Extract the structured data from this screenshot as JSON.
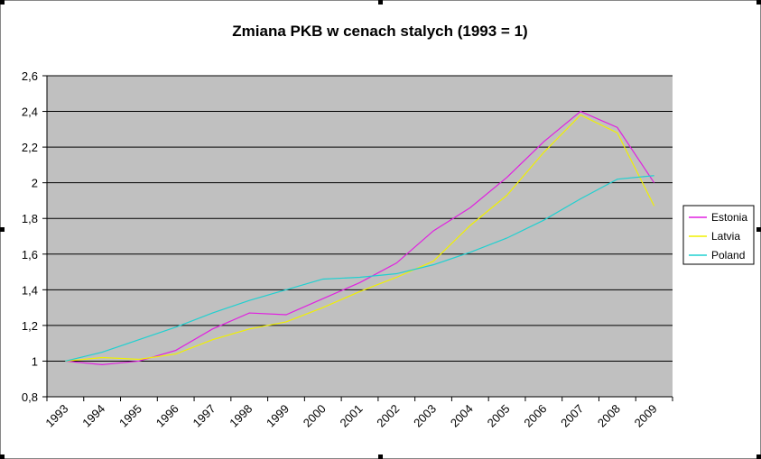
{
  "chart_data": {
    "type": "line",
    "title": "Zmiana PKB w cenach stalych (1993 = 1)",
    "categories": [
      "1993",
      "1994",
      "1995",
      "1996",
      "1997",
      "1998",
      "1999",
      "2000",
      "2001",
      "2002",
      "2003",
      "2004",
      "2005",
      "2006",
      "2007",
      "2008",
      "2009"
    ],
    "series": [
      {
        "name": "Estonia",
        "color": "#e020e0",
        "values": [
          1.0,
          0.98,
          1.0,
          1.06,
          1.18,
          1.27,
          1.26,
          1.35,
          1.44,
          1.55,
          1.73,
          1.86,
          2.03,
          2.23,
          2.4,
          2.31,
          2.0
        ]
      },
      {
        "name": "Latvia",
        "color": "#f0f000",
        "values": [
          1.0,
          1.02,
          1.01,
          1.04,
          1.12,
          1.18,
          1.22,
          1.3,
          1.39,
          1.47,
          1.56,
          1.76,
          1.93,
          2.17,
          2.38,
          2.28,
          1.87
        ]
      },
      {
        "name": "Poland",
        "color": "#20d0d0",
        "values": [
          1.0,
          1.05,
          1.12,
          1.19,
          1.27,
          1.34,
          1.4,
          1.46,
          1.47,
          1.49,
          1.54,
          1.61,
          1.69,
          1.79,
          1.91,
          2.02,
          2.04
        ]
      }
    ],
    "ylim": [
      0.8,
      2.6
    ],
    "yticks": [
      {
        "value": 0.8,
        "label": "0,8"
      },
      1,
      {
        "value": 1.2,
        "label": "1,2"
      },
      {
        "value": 1.4,
        "label": "1,4"
      },
      {
        "value": 1.6,
        "label": "1,6"
      },
      {
        "value": 1.8,
        "label": "1,8"
      },
      2,
      {
        "value": 2.2,
        "label": "2,2"
      },
      {
        "value": 2.4,
        "label": "2,4"
      },
      {
        "value": 2.6,
        "label": "2,6"
      }
    ],
    "grid": true,
    "legend": "right"
  }
}
